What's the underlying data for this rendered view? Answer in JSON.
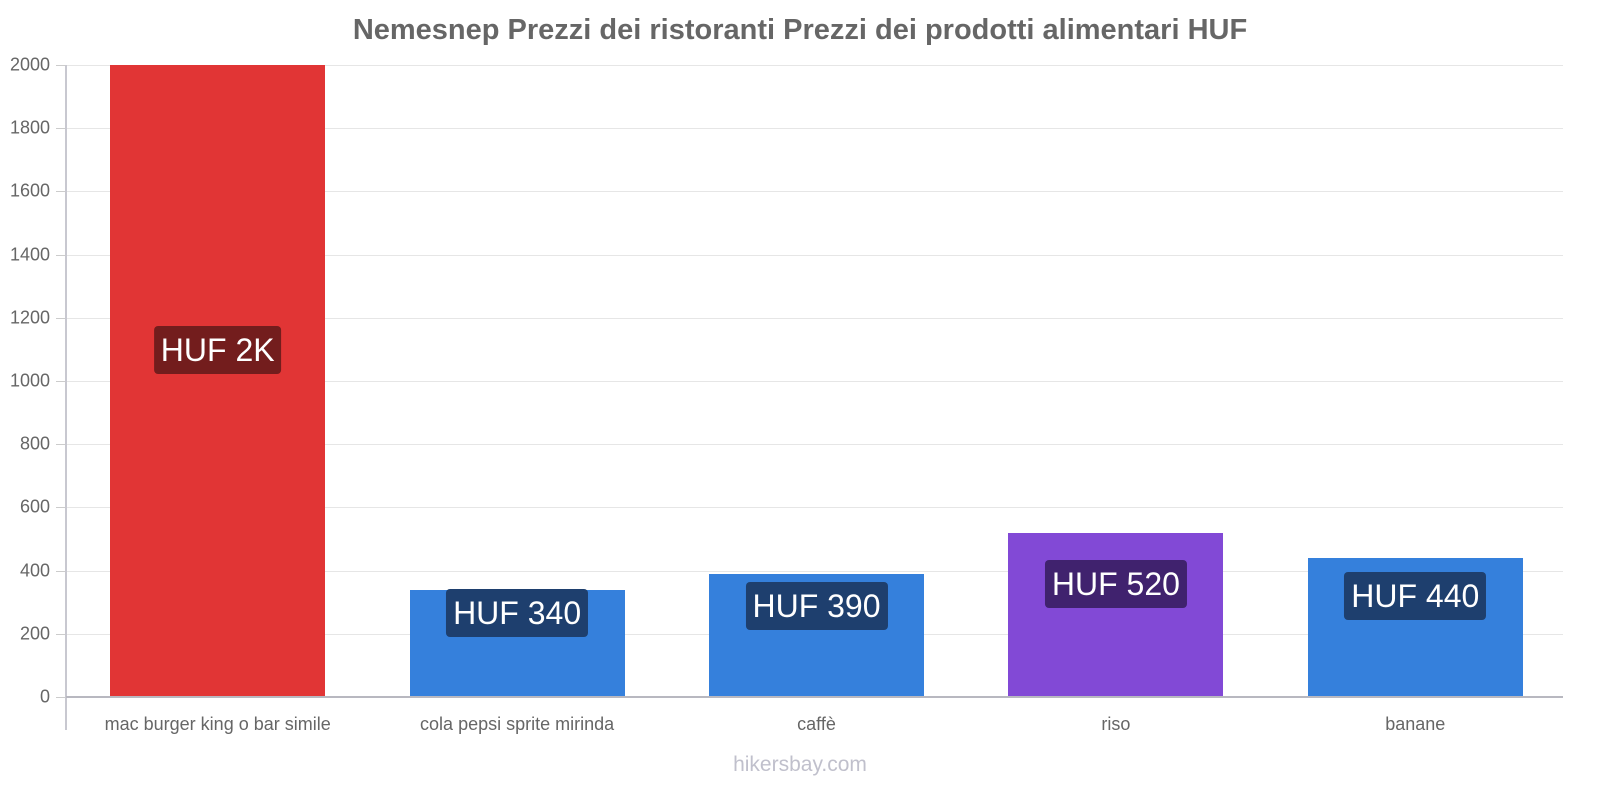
{
  "chart_data": {
    "type": "bar",
    "title": "Nemesnep Prezzi dei ristoranti Prezzi dei prodotti alimentari HUF",
    "xlabel": "",
    "ylabel": "",
    "ylim": [
      0,
      2000
    ],
    "yticks": [
      "0",
      "200",
      "400",
      "600",
      "800",
      "1000",
      "1200",
      "1400",
      "1600",
      "1800",
      "2000"
    ],
    "grid": true,
    "legend": null,
    "categories": [
      "mac burger king o bar simile",
      "cola pepsi sprite mirinda",
      "caffè",
      "riso",
      "banane"
    ],
    "values": [
      2000,
      340,
      390,
      520,
      440
    ],
    "data_labels": [
      "HUF 2K",
      "HUF 340",
      "HUF 390",
      "HUF 520",
      "HUF 440"
    ],
    "bar_colors": [
      "#e13535",
      "#3580dc",
      "#3580dc",
      "#8249d6",
      "#3580dc"
    ],
    "label_colors": [
      "#731d1d",
      "#1e3f6e",
      "#1e3f6e",
      "#40226e",
      "#1e3f6e"
    ]
  },
  "watermark": "hikersbay.com"
}
